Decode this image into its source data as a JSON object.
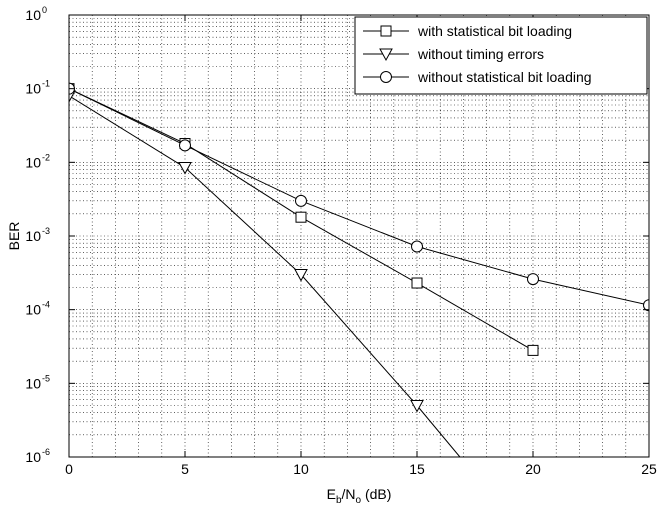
{
  "chart_data": {
    "type": "line",
    "xlabel": {
      "base": "E",
      "sub1": "b",
      "mid": "/N",
      "sub2": "o",
      "tail": " (dB)"
    },
    "ylabel": "BER",
    "xlim": [
      0,
      25
    ],
    "ylim": [
      1e-06,
      1
    ],
    "yscale": "log",
    "grid": true,
    "x_ticks": [
      0,
      5,
      10,
      15,
      20,
      25
    ],
    "y_ticks": [
      {
        "value": 1e-06,
        "base": "10",
        "exp": "-6"
      },
      {
        "value": 1e-05,
        "base": "10",
        "exp": "-5"
      },
      {
        "value": 0.0001,
        "base": "10",
        "exp": "-4"
      },
      {
        "value": 0.001,
        "base": "10",
        "exp": "-3"
      },
      {
        "value": 0.01,
        "base": "10",
        "exp": "-2"
      },
      {
        "value": 0.1,
        "base": "10",
        "exp": "-1"
      },
      {
        "value": 1,
        "base": "10",
        "exp": "0"
      }
    ],
    "legend_position": "top-right",
    "series": [
      {
        "name": "with statistical bit loading",
        "marker": "square",
        "x": [
          0,
          5,
          10,
          15,
          20
        ],
        "y": [
          0.1,
          0.018,
          0.0018,
          0.00023,
          2.8e-05
        ]
      },
      {
        "name": "without timing errors",
        "marker": "triangle-down",
        "x": [
          0,
          5,
          10,
          15,
          16.85
        ],
        "y": [
          0.08,
          0.0085,
          0.0003,
          5e-06,
          1e-06
        ]
      },
      {
        "name": "without statistical bit loading",
        "marker": "circle",
        "x": [
          0,
          5,
          10,
          15,
          20,
          25
        ],
        "y": [
          0.1,
          0.017,
          0.003,
          0.00072,
          0.00026,
          0.000115
        ]
      }
    ]
  }
}
